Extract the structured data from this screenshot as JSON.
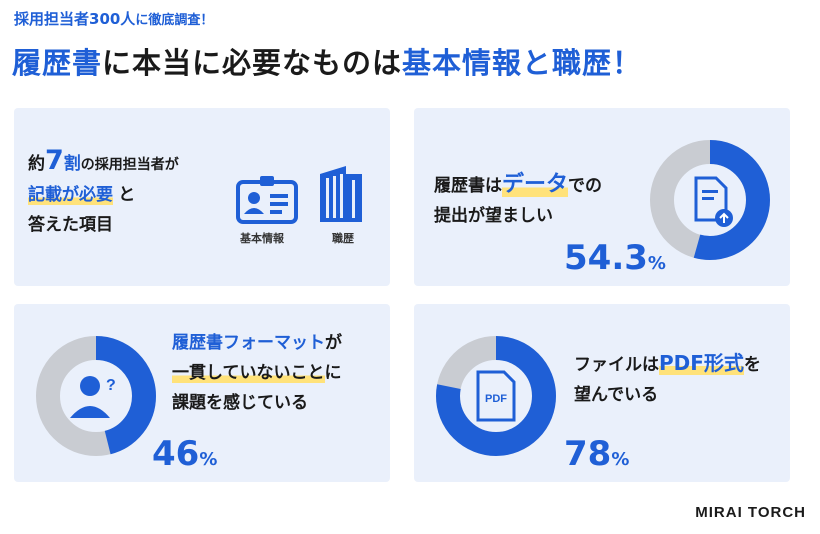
{
  "header": {
    "subtitle_main": "採用担当者300人",
    "subtitle_rest": "に徹底調査！",
    "title_part1": "履歴書",
    "title_part2": "に本当に必要なものは",
    "title_part3": "基本情報と職歴",
    "title_part4": "！"
  },
  "card1": {
    "line1_prefix": "約",
    "line1_number": "7",
    "line1_suffix": "割",
    "line1_rest": "の採用担当者が",
    "line2_hl": "記載が必要",
    "line2_rest": "と",
    "line3": "答えた項目",
    "icon1_label": "基本情報",
    "icon2_label": "職歴",
    "icon1": "id-card-icon",
    "icon2": "building-icon"
  },
  "card2": {
    "line1_prefix": "履歴書は",
    "line1_hl": "データ",
    "line1_rest": "での",
    "line2": "提出が望ましい",
    "percent": 54.3,
    "percent_text": "54.3",
    "unit": "%",
    "icon": "document-upload-icon"
  },
  "card3": {
    "line1_hl": "履歴書フォーマット",
    "line1_rest": "が",
    "line2_hl": "一貫していないこと",
    "line2_rest": "に",
    "line3": "課題を感じている",
    "percent": 46,
    "percent_text": "46",
    "unit": "%",
    "icon": "person-question-icon"
  },
  "card4": {
    "line1_prefix": "ファイルは",
    "line1_hl": "PDF形式",
    "line1_rest": "を",
    "line2": "望んでいる",
    "percent": 78,
    "percent_text": "78",
    "unit": "%",
    "icon": "pdf-file-icon",
    "icon_text": "PDF"
  },
  "footer": {
    "logo": "MIRAI TORCH"
  },
  "colors": {
    "accent": "#1f5fd6",
    "card_bg": "#eaf0fb",
    "donut_track": "#c9ccd2",
    "highlight": "#ffe27a"
  }
}
